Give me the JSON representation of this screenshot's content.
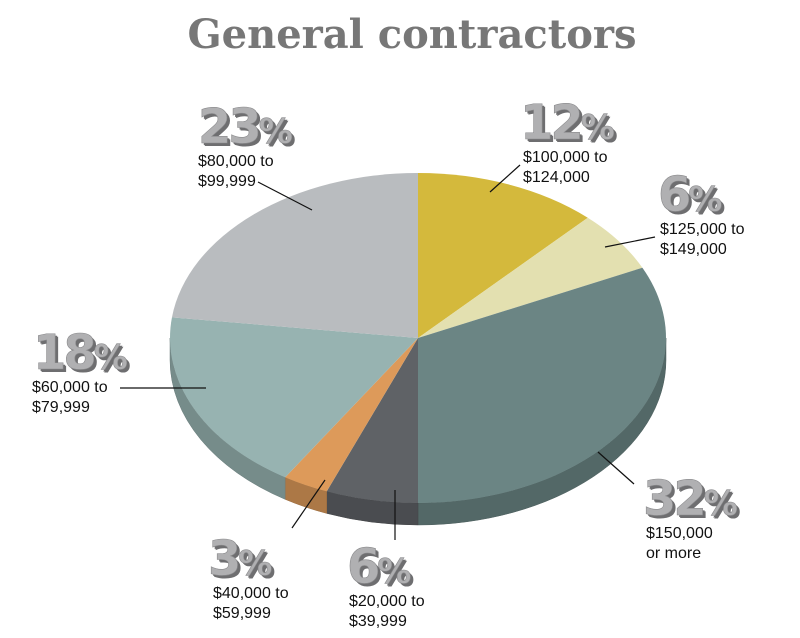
{
  "chart_data": {
    "type": "pie",
    "title": "General contractors",
    "start": "top",
    "direction": "clockwise",
    "style": "3d",
    "slices": [
      {
        "value": 12,
        "label": "12%",
        "range": [
          "$100,000 to",
          "$124,000"
        ],
        "color": "#d4b93c"
      },
      {
        "value": 6,
        "label": "6%",
        "range": [
          "$125,000 to",
          "$149,000"
        ],
        "color": "#e3e0b0"
      },
      {
        "value": 32,
        "label": "32%",
        "range": [
          "$150,000",
          "or more"
        ],
        "color": "#6b8584"
      },
      {
        "value": 6,
        "label": "6%",
        "range": [
          "$20,000 to",
          "$39,999"
        ],
        "color": "#5f6266"
      },
      {
        "value": 3,
        "label": "3%",
        "range": [
          "$40,000 to",
          "$59,999"
        ],
        "color": "#dd9a5a"
      },
      {
        "value": 18,
        "label": "18%",
        "range": [
          "$60,000 to",
          "$79,999"
        ],
        "color": "#97b3b1"
      },
      {
        "value": 23,
        "label": "23%",
        "range": [
          "$80,000 to",
          "$99,999"
        ],
        "color": "#b9bcbf"
      }
    ]
  }
}
